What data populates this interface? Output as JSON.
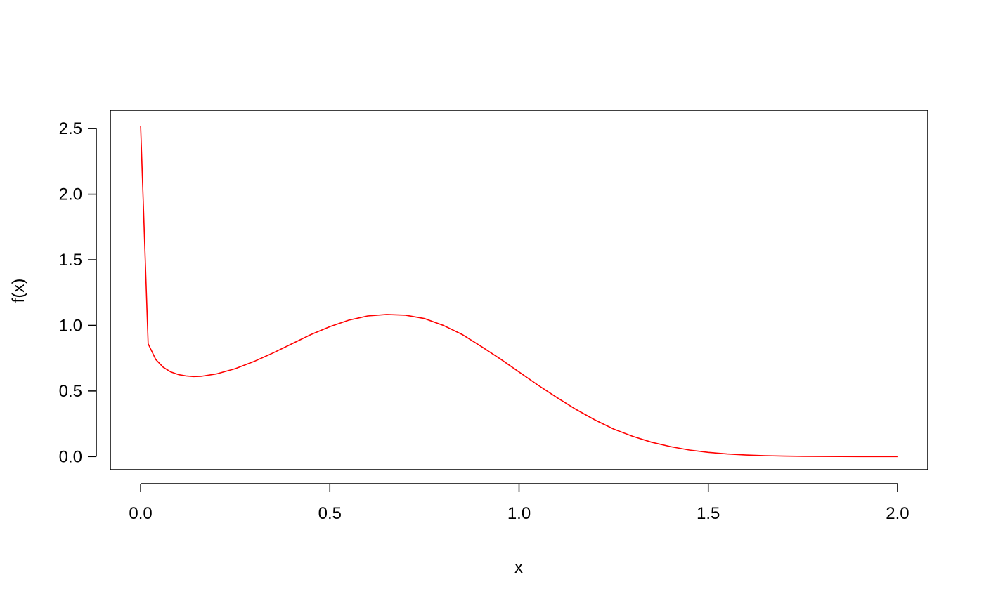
{
  "chart_data": {
    "type": "line",
    "title": "",
    "xlabel": "x",
    "ylabel": "f(x)",
    "xlim": [
      -0.08,
      2.08
    ],
    "ylim": [
      -0.1,
      2.64
    ],
    "xticks": [
      0.0,
      0.5,
      1.0,
      1.5,
      2.0
    ],
    "xtick_labels": [
      "0.0",
      "0.5",
      "1.0",
      "1.5",
      "2.0"
    ],
    "yticks": [
      0.0,
      0.5,
      1.0,
      1.5,
      2.0,
      2.5
    ],
    "ytick_labels": [
      "0.0",
      "0.5",
      "1.0",
      "1.5",
      "2.0",
      "2.5"
    ],
    "grid": false,
    "legend": "none",
    "line_color": "#ff0000",
    "series": [
      {
        "x": [
          0.0,
          0.02,
          0.04,
          0.06,
          0.08,
          0.1,
          0.12,
          0.14,
          0.16,
          0.2,
          0.25,
          0.3,
          0.35,
          0.4,
          0.45,
          0.5,
          0.55,
          0.6,
          0.65,
          0.7,
          0.75,
          0.8,
          0.85,
          0.9,
          0.95,
          1.0,
          1.05,
          1.1,
          1.15,
          1.2,
          1.25,
          1.3,
          1.35,
          1.4,
          1.45,
          1.5,
          1.55,
          1.6,
          1.65,
          1.7,
          1.75,
          1.8,
          1.85,
          1.9,
          1.95,
          2.0
        ],
        "y": [
          2.52,
          0.86,
          0.74,
          0.68,
          0.645,
          0.625,
          0.615,
          0.61,
          0.612,
          0.63,
          0.67,
          0.725,
          0.79,
          0.86,
          0.93,
          0.99,
          1.04,
          1.072,
          1.083,
          1.078,
          1.052,
          1.0,
          0.93,
          0.84,
          0.745,
          0.645,
          0.545,
          0.45,
          0.36,
          0.28,
          0.21,
          0.155,
          0.11,
          0.076,
          0.05,
          0.032,
          0.02,
          0.012,
          0.007,
          0.004,
          0.002,
          0.001,
          0.0005,
          0.0002,
          0.0001,
          0.0
        ]
      }
    ]
  }
}
